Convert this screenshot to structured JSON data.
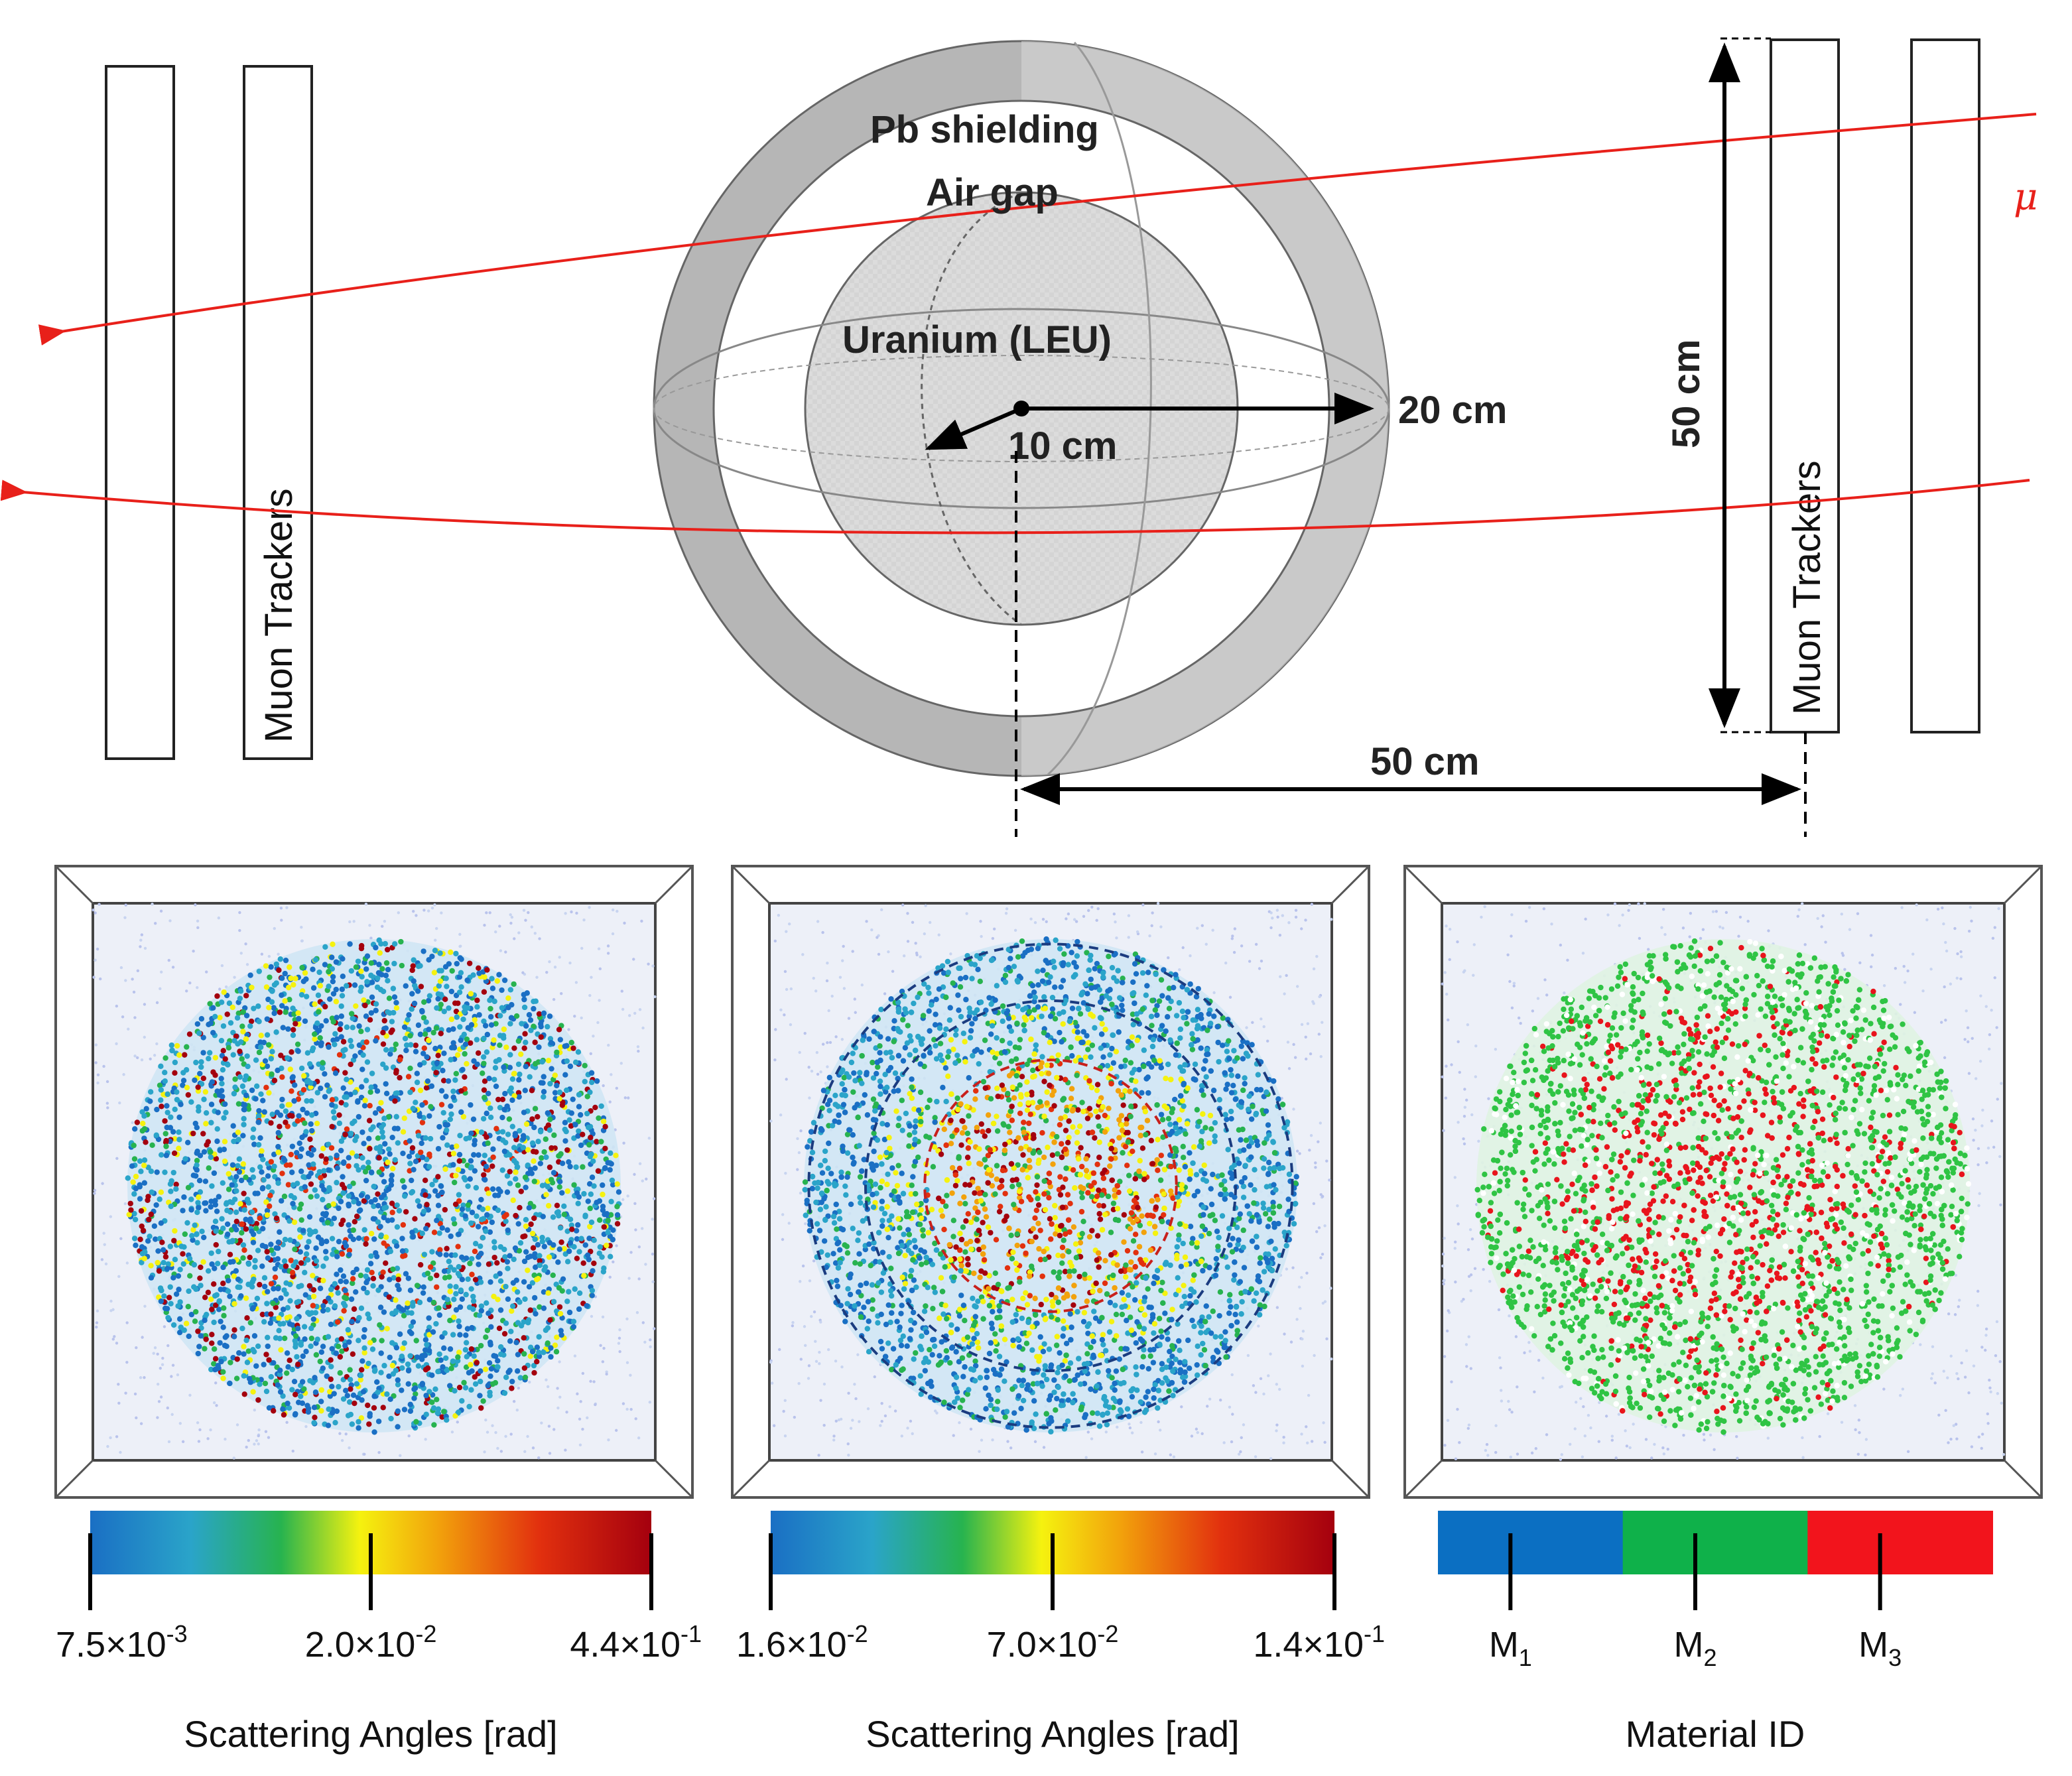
{
  "diagram": {
    "labels": {
      "shield": "Pb shielding",
      "air_gap": "Air gap",
      "core": "Uranium (LEU)",
      "r_outer": "20 cm",
      "r_inner": "10 cm",
      "height": "50 cm",
      "distance": "50 cm",
      "tracker_left": "Muon Trackers",
      "tracker_right": "Muon Trackers",
      "muon_symbol": "μ"
    },
    "colors": {
      "muon": "#e8201a",
      "shield": "#b4b4b4",
      "core": "#d7d7d7",
      "outline": "#333333"
    }
  },
  "panels": [
    {
      "name": "scattering-panel-1",
      "colorbar": "gradient",
      "ticks": [
        {
          "m": "7.5×10",
          "e": "-3"
        },
        {
          "m": "2.0×10",
          "e": "-2"
        },
        {
          "m": "4.4×10",
          "e": "-1"
        }
      ],
      "caption": "Scattering Angles [rad]"
    },
    {
      "name": "scattering-panel-2",
      "colorbar": "gradient",
      "ticks": [
        {
          "m": "1.6×10",
          "e": "-2"
        },
        {
          "m": "7.0×10",
          "e": "-2"
        },
        {
          "m": "1.4×10",
          "e": "-1"
        }
      ],
      "caption": "Scattering Angles [rad]"
    },
    {
      "name": "material-panel",
      "colorbar": "discrete",
      "ticks": [
        {
          "m": "M",
          "s": "1"
        },
        {
          "m": "M",
          "s": "2"
        },
        {
          "m": "M",
          "s": "3"
        }
      ],
      "caption": "Material ID",
      "segment_colors": [
        "#0b6fc2",
        "#0fb14a",
        "#f2141c"
      ]
    }
  ],
  "colormap": [
    "#1a6fc4",
    "#2aa4c9",
    "#27b34f",
    "#f5f20f",
    "#f2a20c",
    "#e2300e",
    "#a4000e"
  ]
}
